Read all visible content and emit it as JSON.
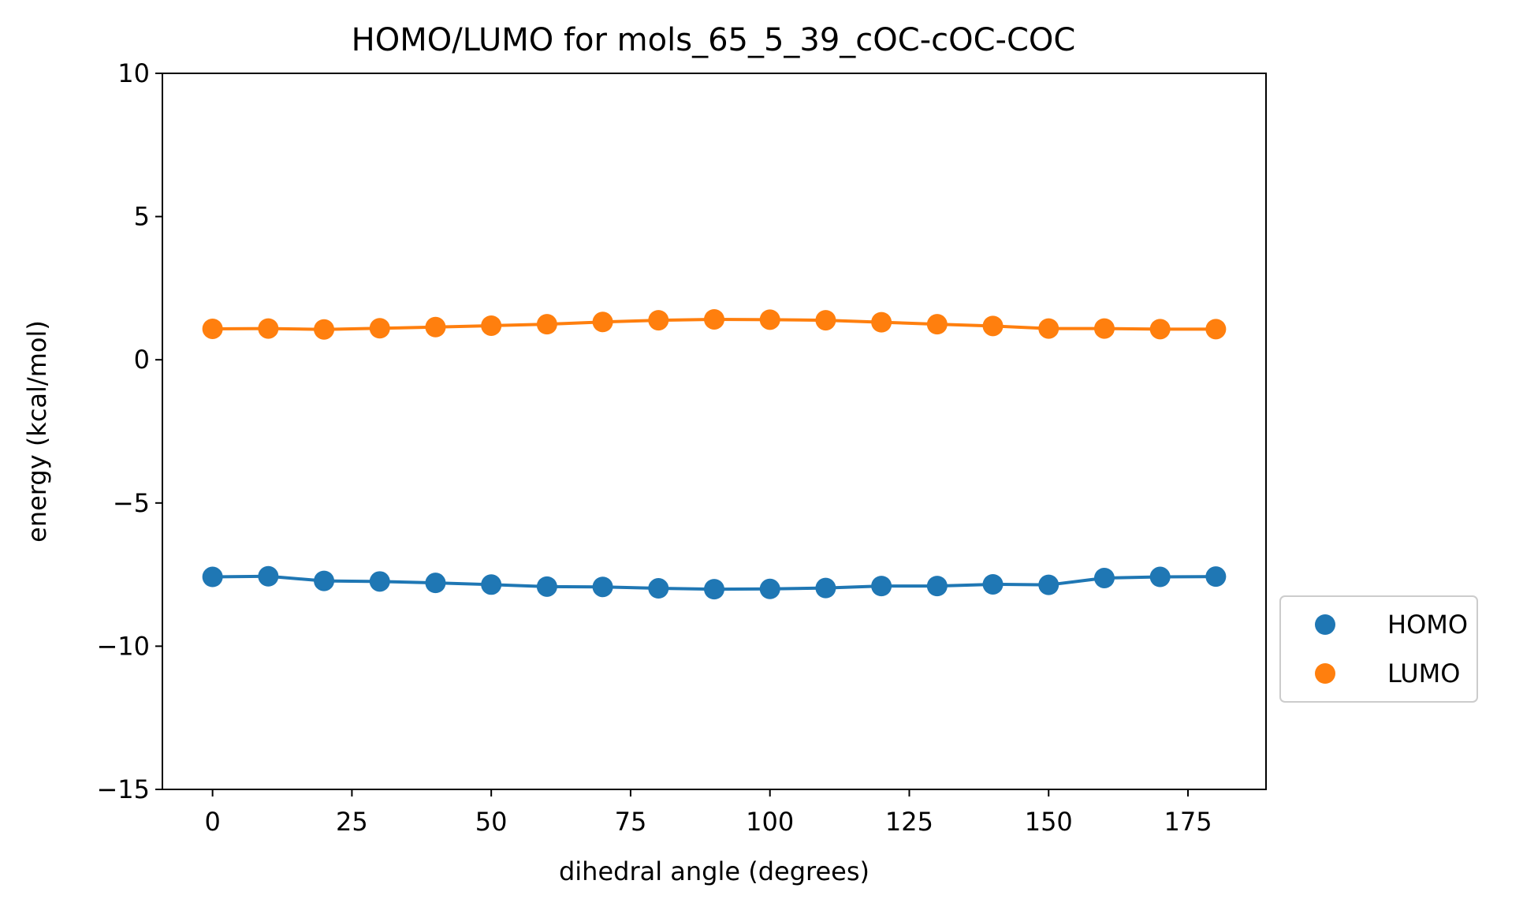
{
  "chart_data": {
    "type": "line",
    "title": "HOMO/LUMO for mols_65_5_39_cOC-cOC-COC",
    "xlabel": "dihedral angle (degrees)",
    "ylabel": "energy (kcal/mol)",
    "xlim": [
      -9,
      189
    ],
    "ylim": [
      -15,
      10
    ],
    "xticks": [
      0,
      25,
      50,
      75,
      100,
      125,
      150,
      175
    ],
    "xtick_labels": [
      "0",
      "25",
      "50",
      "75",
      "100",
      "125",
      "150",
      "175"
    ],
    "yticks": [
      -15,
      -10,
      -5,
      0,
      5,
      10
    ],
    "ytick_labels": [
      "−15",
      "−10",
      "−5",
      "0",
      "5",
      "10"
    ],
    "grid": false,
    "legend_position": "outside-right-bottom",
    "x": [
      0,
      10,
      20,
      30,
      40,
      50,
      60,
      70,
      80,
      90,
      100,
      110,
      120,
      130,
      140,
      150,
      160,
      170,
      180
    ],
    "series": [
      {
        "name": "HOMO",
        "color": "#1f77b4",
        "values": [
          -7.58,
          -7.56,
          -7.72,
          -7.74,
          -7.79,
          -7.85,
          -7.92,
          -7.93,
          -7.98,
          -8.01,
          -8.0,
          -7.97,
          -7.9,
          -7.9,
          -7.84,
          -7.86,
          -7.62,
          -7.58,
          -7.57
        ]
      },
      {
        "name": "LUMO",
        "color": "#ff7f0e",
        "values": [
          1.08,
          1.09,
          1.06,
          1.1,
          1.14,
          1.19,
          1.24,
          1.32,
          1.38,
          1.41,
          1.4,
          1.38,
          1.31,
          1.24,
          1.18,
          1.09,
          1.09,
          1.07,
          1.07
        ]
      }
    ]
  }
}
